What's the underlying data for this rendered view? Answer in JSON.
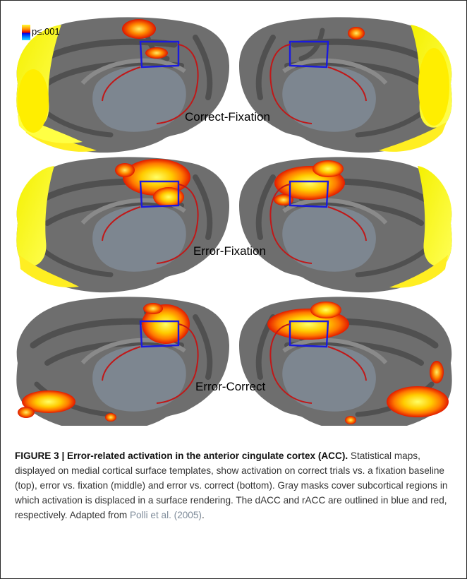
{
  "legend": {
    "label": "p≤.001"
  },
  "panels": [
    {
      "label": "Correct-Fixation"
    },
    {
      "label": "Error-Fixation"
    },
    {
      "label": "Error-Correct"
    }
  ],
  "caption": {
    "title": "FIGURE 3 | Error-related activation in the anterior cingulate cortex (ACC).",
    "body": " Statistical maps, displayed on medial cortical surface templates, show activation on correct trials vs. a fixation baseline (top), error vs. fixation (middle) and error vs. correct (bottom). Gray masks cover subcortical regions in which activation is displaced in a surface rendering. The dACC and rACC are outlined in blue and red, respectively. Adapted from ",
    "ref": "Polli et al. (2005)",
    "end": "."
  },
  "colors": {
    "cortex": "#6e6e6e",
    "sulci": "#4f4f4f",
    "mask": "#7d8690",
    "dacc_outline": "#1a1adf",
    "racc_outline": "#c01818",
    "activation_low": "#e21a00",
    "activation_mid": "#ff8c00",
    "activation_high": "#ffff33"
  }
}
